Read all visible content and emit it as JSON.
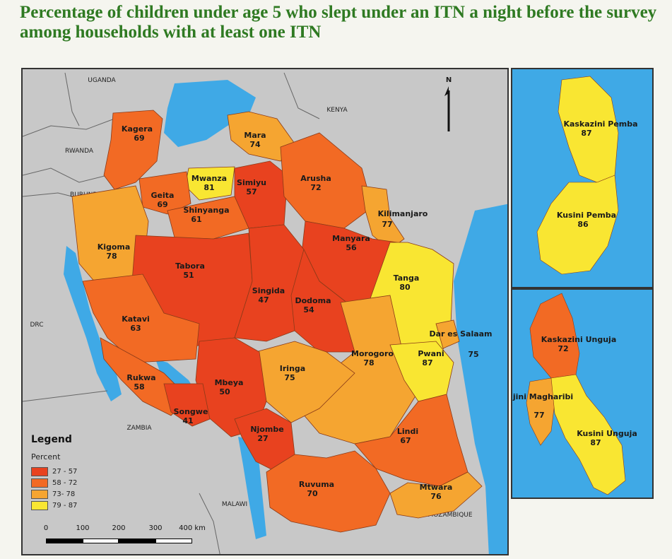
{
  "title": "Percentage of children under age 5 who slept under an ITN a night before the survey among households with at least one ITN",
  "colors": {
    "class1": "#e8421f",
    "class2": "#f26a24",
    "class3": "#f5a531",
    "class4": "#f9e632",
    "water": "#3fa9e6",
    "land": "#c8c8c8"
  },
  "countries": [
    "UGANDA",
    "KENYA",
    "RWANDA",
    "BURUNDI",
    "DRC",
    "ZAMBIA",
    "MALAWI",
    "MOZAMBIQUE"
  ],
  "north_label": "N",
  "regions": [
    {
      "name": "Kagera",
      "value": 69
    },
    {
      "name": "Mara",
      "value": 74
    },
    {
      "name": "Mwanza",
      "value": 81
    },
    {
      "name": "Simiyu",
      "value": 57
    },
    {
      "name": "Arusha",
      "value": 72
    },
    {
      "name": "Geita",
      "value": 69
    },
    {
      "name": "Shinyanga",
      "value": 61
    },
    {
      "name": "Kilimanjaro",
      "value": 77
    },
    {
      "name": "Kigoma",
      "value": 78
    },
    {
      "name": "Manyara",
      "value": 56
    },
    {
      "name": "Tabora",
      "value": 51
    },
    {
      "name": "Tanga",
      "value": 80
    },
    {
      "name": "Singida",
      "value": 47
    },
    {
      "name": "Dodoma",
      "value": 54
    },
    {
      "name": "Katavi",
      "value": 63
    },
    {
      "name": "Dar es Salaam",
      "value": 75
    },
    {
      "name": "Morogoro",
      "value": 78
    },
    {
      "name": "Pwani",
      "value": 87
    },
    {
      "name": "Iringa",
      "value": 75
    },
    {
      "name": "Rukwa",
      "value": 58
    },
    {
      "name": "Mbeya",
      "value": 50
    },
    {
      "name": "Songwe",
      "value": 41
    },
    {
      "name": "Njombe",
      "value": 27
    },
    {
      "name": "Lindi",
      "value": 67
    },
    {
      "name": "Ruvuma",
      "value": 70
    },
    {
      "name": "Mtwara",
      "value": 76
    },
    {
      "name": "Kaskazini Pemba",
      "value": 87
    },
    {
      "name": "Kusini Pemba",
      "value": 86
    },
    {
      "name": "Kaskazini Unguja",
      "value": 72
    },
    {
      "name": "Mjini Magharibi",
      "value": 77
    },
    {
      "name": "Kusini Unguja",
      "value": 87
    }
  ],
  "legend": {
    "title": "Legend",
    "subtitle": "Percent",
    "classes": [
      {
        "label": "27 - 57",
        "color": "#e8421f"
      },
      {
        "label": "58 - 72",
        "color": "#f26a24"
      },
      {
        "label": "73- 78",
        "color": "#f5a531"
      },
      {
        "label": "79 - 87",
        "color": "#f9e632"
      }
    ]
  },
  "scale_bar": {
    "ticks": [
      "0",
      "100",
      "200",
      "300",
      "400 km"
    ]
  }
}
